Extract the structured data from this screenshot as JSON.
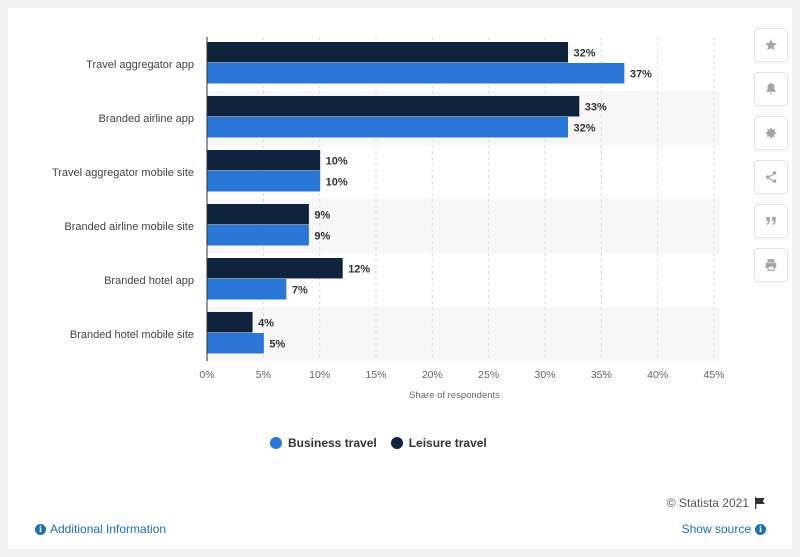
{
  "chart_data": {
    "type": "bar",
    "orientation": "horizontal",
    "categories": [
      "Travel aggregator app",
      "Branded airline app",
      "Travel aggregator mobile site",
      "Branded airline mobile site",
      "Branded hotel app",
      "Branded hotel mobile site"
    ],
    "series": [
      {
        "name": "Leisure travel",
        "color": "#0f233d",
        "values": [
          32,
          33,
          10,
          9,
          12,
          4
        ]
      },
      {
        "name": "Business travel",
        "color": "#2a77d8",
        "values": [
          37,
          32,
          10,
          9,
          7,
          5
        ]
      }
    ],
    "xlabel": "Share of respondents",
    "ylabel": "",
    "xlim": [
      0,
      45
    ],
    "ticks": [
      "0%",
      "5%",
      "10%",
      "15%",
      "20%",
      "25%",
      "30%",
      "35%",
      "40%",
      "45%"
    ],
    "value_suffix": "%",
    "grid": true,
    "legend": {
      "placement": "bottom-left",
      "items": [
        {
          "label": "Business travel",
          "color": "#2a77d8"
        },
        {
          "label": "Leisure travel",
          "color": "#0f233d"
        }
      ]
    }
  },
  "toolbar": {
    "icons": [
      "star-icon",
      "bell-icon",
      "gear-icon",
      "share-icon",
      "quote-icon",
      "print-icon"
    ]
  },
  "footer": {
    "credit": "© Statista 2021",
    "additional_info": "Additional Information",
    "show_source": "Show source"
  }
}
